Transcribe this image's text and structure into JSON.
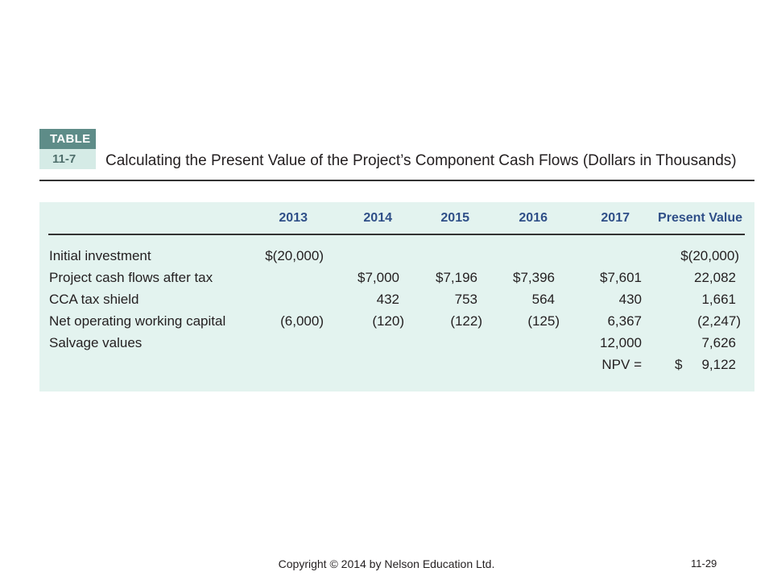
{
  "table": {
    "badge_top": "TABLE",
    "badge_number": "11-7",
    "title": "Calculating the Present Value of the Project’s Component Cash Flows (Dollars in Thousands)",
    "headers": [
      "2013",
      "2014",
      "2015",
      "2016",
      "2017",
      "Present Value"
    ],
    "rows": [
      {
        "label": "Initial investment",
        "cells": [
          "$(20,000)",
          "",
          "",
          "",
          "",
          "$(20,000)"
        ]
      },
      {
        "label": "Project cash flows after tax",
        "cells": [
          "",
          "$7,000",
          "$7,196",
          "$7,396",
          "$7,601",
          "22,082"
        ]
      },
      {
        "label": "CCA tax shield",
        "cells": [
          "",
          "432",
          "753",
          "564",
          "430",
          "1,661"
        ]
      },
      {
        "label": "Net operating working capital",
        "cells": [
          "(6,000)",
          "(120)",
          "(122)",
          "(125)",
          "6,367",
          "(2,247)"
        ]
      },
      {
        "label": "Salvage values",
        "cells": [
          "",
          "",
          "",
          "",
          "12,000",
          "7,626"
        ]
      }
    ],
    "npv_label": "NPV =",
    "npv_currency": "$",
    "npv_value": "9,122"
  },
  "footer": {
    "copyright": "Copyright © 2014 by Nelson Education Ltd.",
    "page_number": "11-29"
  }
}
